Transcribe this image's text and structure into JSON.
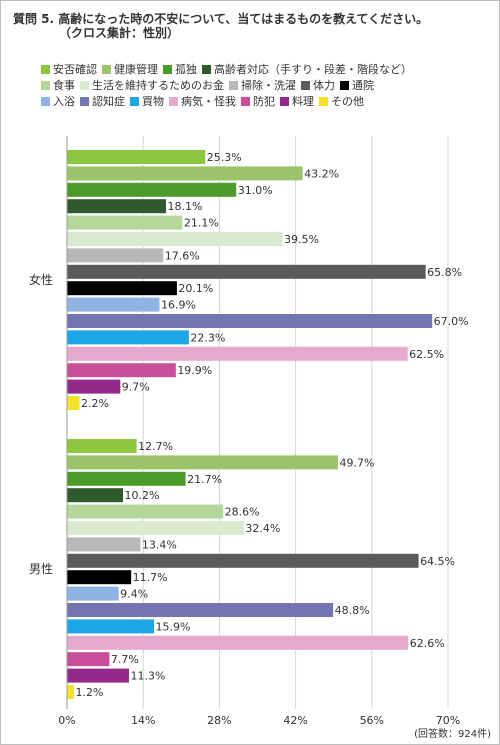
{
  "question": {
    "title": "質問 5. 高齢になった時の不安について、当てはまるものを教えてください。",
    "subtitle": "（クロス集計：性別）"
  },
  "note": "(回答数：924件)",
  "chart_data": {
    "type": "bar",
    "orientation": "horizontal",
    "categories": [
      "女性",
      "男性"
    ],
    "series": [
      {
        "name": "安否確認",
        "color": "#8dc63f",
        "values": [
          25.3,
          12.7
        ]
      },
      {
        "name": "健康管理",
        "color": "#9bc46a",
        "values": [
          43.2,
          49.7
        ]
      },
      {
        "name": "孤独",
        "color": "#4c9a2a",
        "values": [
          31.0,
          21.7
        ]
      },
      {
        "name": "高齢者対応（手すり・段差・階段など）",
        "color": "#2e5a2e",
        "values": [
          18.1,
          10.2
        ]
      },
      {
        "name": "食事",
        "color": "#b5d89a",
        "values": [
          21.1,
          28.6
        ]
      },
      {
        "name": "生活を維持するためのお金",
        "color": "#d9ead0",
        "values": [
          39.5,
          32.4
        ]
      },
      {
        "name": "掃除・洗濯",
        "color": "#b8b8b8",
        "values": [
          17.6,
          13.4
        ]
      },
      {
        "name": "体力",
        "color": "#5a5a5a",
        "values": [
          65.8,
          64.5
        ]
      },
      {
        "name": "通院",
        "color": "#000000",
        "values": [
          20.1,
          11.7
        ]
      },
      {
        "name": "入浴",
        "color": "#8fb4e3",
        "values": [
          16.9,
          9.4
        ]
      },
      {
        "name": "認知症",
        "color": "#7474b0",
        "values": [
          67.0,
          48.8
        ]
      },
      {
        "name": "買物",
        "color": "#1ca6e6",
        "values": [
          22.3,
          15.9
        ]
      },
      {
        "name": "病気・怪我",
        "color": "#e4a9cc",
        "values": [
          62.5,
          62.6
        ]
      },
      {
        "name": "防犯",
        "color": "#c94f9a",
        "values": [
          19.9,
          7.7
        ]
      },
      {
        "name": "料理",
        "color": "#93298a",
        "values": [
          9.7,
          11.3
        ]
      },
      {
        "name": "その他",
        "color": "#f5e12a",
        "values": [
          2.2,
          1.2
        ]
      }
    ],
    "legend_rows": [
      [
        0,
        1,
        2,
        3
      ],
      [
        4,
        5,
        6,
        7,
        8
      ],
      [
        9,
        10,
        11,
        12,
        13,
        14,
        15
      ]
    ],
    "xlim": [
      0,
      70
    ],
    "xticks": [
      "0%",
      "14%",
      "28%",
      "42%",
      "56%",
      "70%"
    ],
    "value_suffix": "%",
    "gridlines": true
  }
}
